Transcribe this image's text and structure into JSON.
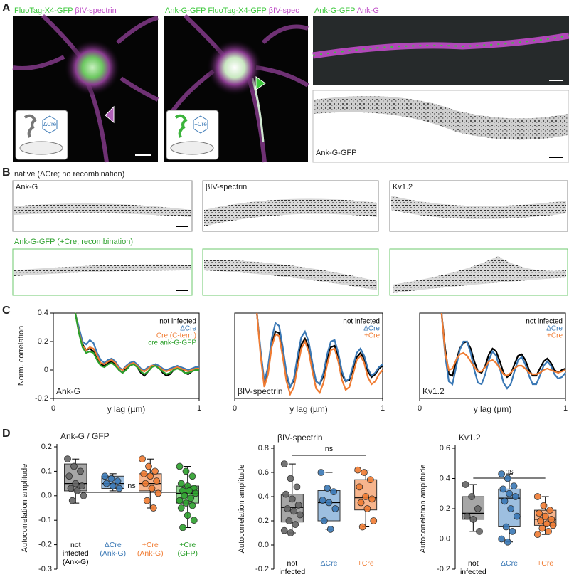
{
  "panels": {
    "A": {
      "label": "A",
      "images": [
        {
          "labels": [
            "FluoTag-X4-GFP",
            "βIV-spectrin"
          ],
          "inset": "ΔCre"
        },
        {
          "labels": [
            "Ank-G-GFP",
            "FluoTag-X4-GFP",
            "βIV-spec"
          ],
          "inset": "+Cre"
        },
        {
          "labels": [
            "Ank-G-GFP",
            "Ank-G"
          ]
        },
        {
          "labels": [
            "Ank-G-GFP"
          ]
        }
      ]
    },
    "B": {
      "label": "B",
      "row_titles": [
        "native (ΔCre; no recombination)",
        "Ank-G-GFP (+Cre; recombination)"
      ],
      "box_labels": [
        "Ank-G",
        "βIV-spectrin",
        "Kv1.2"
      ]
    },
    "C": {
      "label": "C"
    },
    "D": {
      "label": "D"
    }
  },
  "chart_data": [
    {
      "type": "line",
      "inner_label": "Ank-G",
      "y_label": "Norm. correlation",
      "x_label": "y lag (µm)",
      "xlim": [
        0,
        1
      ],
      "xticks": [
        0,
        1
      ],
      "ylim": [
        -0.2,
        0.4
      ],
      "yticks": [
        0.4,
        0.2,
        0,
        -0.2
      ],
      "x": [
        0.15,
        0.175,
        0.2,
        0.225,
        0.25,
        0.275,
        0.3,
        0.325,
        0.35,
        0.375,
        0.4,
        0.425,
        0.45,
        0.475,
        0.5,
        0.525,
        0.55,
        0.575,
        0.6,
        0.625,
        0.65,
        0.675,
        0.7,
        0.725,
        0.75,
        0.775,
        0.8,
        0.825,
        0.85,
        0.875,
        0.9,
        0.925,
        0.95,
        0.975,
        1.0
      ],
      "series": [
        {
          "name": "not infected",
          "color": "#000000",
          "values": [
            0.4,
            0.28,
            0.18,
            0.14,
            0.15,
            0.13,
            0.08,
            0.04,
            0.03,
            0.05,
            0.06,
            0.04,
            0.0,
            -0.02,
            0.01,
            0.04,
            0.05,
            0.02,
            -0.02,
            -0.04,
            -0.01,
            0.02,
            0.04,
            0.02,
            -0.02,
            -0.04,
            -0.03,
            0.0,
            0.02,
            0.01,
            -0.02,
            -0.03,
            -0.01,
            0.01,
            0.01
          ]
        },
        {
          "name": "ΔCre",
          "color": "#3a78b5",
          "values": [
            0.4,
            0.3,
            0.2,
            0.18,
            0.21,
            0.19,
            0.12,
            0.07,
            0.05,
            0.07,
            0.08,
            0.06,
            0.02,
            0.0,
            0.03,
            0.05,
            0.06,
            0.04,
            0.01,
            0.0,
            0.02,
            0.03,
            0.04,
            0.03,
            0.01,
            0.0,
            0.01,
            0.02,
            0.03,
            0.02,
            0.01,
            0.0,
            0.01,
            0.02,
            0.02
          ]
        },
        {
          "name": "Cre (C-term)",
          "color": "#f07c33",
          "values": [
            0.4,
            0.27,
            0.17,
            0.14,
            0.16,
            0.15,
            0.1,
            0.05,
            0.04,
            0.06,
            0.07,
            0.05,
            0.01,
            0.0,
            0.02,
            0.04,
            0.05,
            0.03,
            0.0,
            -0.01,
            0.01,
            0.03,
            0.03,
            0.02,
            0.0,
            -0.01,
            0.0,
            0.01,
            0.02,
            0.01,
            0.0,
            -0.01,
            0.0,
            0.01,
            0.01
          ]
        },
        {
          "name": "cre ank-G-GFP",
          "color": "#2ca02c",
          "values": [
            0.4,
            0.26,
            0.16,
            0.12,
            0.13,
            0.12,
            0.07,
            0.03,
            0.02,
            0.04,
            0.05,
            0.03,
            0.0,
            -0.02,
            0.0,
            0.03,
            0.04,
            0.02,
            -0.01,
            -0.03,
            -0.01,
            0.02,
            0.03,
            0.01,
            -0.01,
            -0.03,
            -0.02,
            0.0,
            0.01,
            0.0,
            -0.02,
            -0.02,
            -0.01,
            0.0,
            0.0
          ]
        }
      ]
    },
    {
      "type": "line",
      "inner_label": "βIV-spectrin",
      "x_label": "y lag (µm)",
      "xlim": [
        0,
        1
      ],
      "xticks": [
        0,
        1
      ],
      "ylim": [
        -0.2,
        0.4
      ],
      "x": [
        0.15,
        0.175,
        0.2,
        0.225,
        0.25,
        0.275,
        0.3,
        0.325,
        0.35,
        0.375,
        0.4,
        0.425,
        0.45,
        0.475,
        0.5,
        0.525,
        0.55,
        0.575,
        0.6,
        0.625,
        0.65,
        0.675,
        0.7,
        0.725,
        0.75,
        0.775,
        0.8,
        0.825,
        0.85,
        0.875,
        0.9,
        0.925,
        0.95,
        0.975,
        1.0
      ],
      "series": [
        {
          "name": "not infected",
          "color": "#000000",
          "values": [
            0.4,
            0.12,
            -0.09,
            0.0,
            0.18,
            0.27,
            0.26,
            0.12,
            -0.04,
            -0.12,
            -0.07,
            0.06,
            0.18,
            0.22,
            0.16,
            0.03,
            -0.08,
            -0.1,
            -0.04,
            0.08,
            0.16,
            0.17,
            0.09,
            -0.03,
            -0.08,
            -0.07,
            0.01,
            0.09,
            0.12,
            0.08,
            -0.01,
            -0.05,
            -0.03,
            0.01,
            0.03
          ]
        },
        {
          "name": "ΔCre",
          "color": "#3a78b5",
          "values": [
            0.4,
            0.14,
            -0.08,
            0.02,
            0.22,
            0.33,
            0.31,
            0.16,
            -0.02,
            -0.12,
            -0.06,
            0.1,
            0.23,
            0.27,
            0.2,
            0.05,
            -0.08,
            -0.1,
            -0.02,
            0.11,
            0.2,
            0.21,
            0.12,
            -0.01,
            -0.08,
            -0.06,
            0.03,
            0.12,
            0.15,
            0.1,
            0.01,
            -0.04,
            -0.02,
            0.02,
            0.04
          ]
        },
        {
          "name": "+Cre",
          "color": "#f07c33",
          "values": [
            0.4,
            0.1,
            -0.12,
            -0.03,
            0.16,
            0.25,
            0.24,
            0.09,
            -0.08,
            -0.17,
            -0.12,
            0.02,
            0.15,
            0.2,
            0.13,
            -0.01,
            -0.13,
            -0.16,
            -0.09,
            0.04,
            0.14,
            0.15,
            0.06,
            -0.07,
            -0.14,
            -0.12,
            -0.03,
            0.07,
            0.1,
            0.05,
            -0.05,
            -0.1,
            -0.08,
            -0.03,
            0.0
          ]
        }
      ]
    },
    {
      "type": "line",
      "inner_label": "Kv1.2",
      "x_label": "y lag (µm)",
      "xlim": [
        0,
        1
      ],
      "xticks": [
        0,
        1
      ],
      "ylim": [
        -0.2,
        0.4
      ],
      "x": [
        0.15,
        0.175,
        0.2,
        0.225,
        0.25,
        0.275,
        0.3,
        0.325,
        0.35,
        0.375,
        0.4,
        0.425,
        0.45,
        0.475,
        0.5,
        0.525,
        0.55,
        0.575,
        0.6,
        0.625,
        0.65,
        0.675,
        0.7,
        0.725,
        0.75,
        0.775,
        0.8,
        0.825,
        0.85,
        0.875,
        0.9,
        0.925,
        0.95,
        0.975,
        1.0
      ],
      "series": [
        {
          "name": "not infected",
          "color": "#000000",
          "values": [
            0.4,
            0.15,
            -0.03,
            -0.04,
            0.06,
            0.15,
            0.19,
            0.2,
            0.15,
            0.06,
            -0.01,
            -0.02,
            0.03,
            0.11,
            0.15,
            0.13,
            0.06,
            -0.02,
            -0.05,
            -0.03,
            0.04,
            0.1,
            0.11,
            0.07,
            0.0,
            -0.04,
            -0.04,
            0.01,
            0.06,
            0.08,
            0.05,
            0.0,
            -0.02,
            0.0,
            0.01
          ]
        },
        {
          "name": "ΔCre",
          "color": "#3a78b5",
          "values": [
            0.4,
            0.1,
            -0.08,
            -0.1,
            0.02,
            0.14,
            0.2,
            0.2,
            0.12,
            0.0,
            -0.09,
            -0.1,
            -0.03,
            0.07,
            0.13,
            0.1,
            0.01,
            -0.09,
            -0.13,
            -0.1,
            -0.01,
            0.07,
            0.09,
            0.04,
            -0.04,
            -0.1,
            -0.1,
            -0.04,
            0.03,
            0.06,
            0.03,
            -0.03,
            -0.06,
            -0.05,
            -0.02
          ]
        },
        {
          "name": "+Cre",
          "color": "#f07c33",
          "values": [
            0.4,
            0.12,
            0.0,
            0.01,
            0.07,
            0.11,
            0.12,
            0.1,
            0.06,
            0.02,
            -0.01,
            -0.01,
            0.02,
            0.06,
            0.07,
            0.05,
            0.01,
            -0.03,
            -0.04,
            -0.02,
            0.01,
            0.03,
            0.03,
            0.01,
            -0.02,
            -0.03,
            -0.03,
            -0.02,
            0.0,
            0.01,
            0.0,
            -0.01,
            -0.02,
            -0.01,
            0.0
          ]
        }
      ]
    },
    {
      "type": "box",
      "title": "Ank-G / GFP",
      "y_label": "Autocorrelation amplitude",
      "annotation": "ns",
      "ylim": [
        -0.3,
        0.2
      ],
      "yticks": [
        0.2,
        0.1,
        {
          "value": 0,
          "label": "0.0"
        },
        -0.1,
        -0.2,
        -0.3
      ],
      "categories": [
        [
          "not",
          "infected",
          "(Ank-G)"
        ],
        [
          "ΔCre",
          "(Ank-G)"
        ],
        [
          "+Cre",
          "(Ank-G)"
        ],
        [
          "+Cre",
          "(GFP)"
        ]
      ],
      "boxes": [
        {
          "color": "#555555",
          "fill": "#a6a6a6",
          "whisker_low": -0.03,
          "q1": 0.02,
          "median": 0.05,
          "q3": 0.13,
          "whisker_high": 0.15,
          "points": [
            0.15,
            0.12,
            0.1,
            0.08,
            0.05,
            0.04,
            0.03,
            0.02,
            0.0,
            -0.02
          ]
        },
        {
          "color": "#3a78b5",
          "fill": "#9dbfe0",
          "whisker_low": 0.02,
          "q1": 0.03,
          "median": 0.05,
          "q3": 0.08,
          "whisker_high": 0.09,
          "points": [
            0.08,
            0.07,
            0.06,
            0.05,
            0.04,
            0.03
          ]
        },
        {
          "color": "#f07c33",
          "fill": "#f7b58d",
          "whisker_low": -0.05,
          "q1": 0.02,
          "median": 0.05,
          "q3": 0.09,
          "whisker_high": 0.15,
          "points": [
            0.15,
            0.12,
            0.1,
            0.09,
            0.08,
            0.06,
            0.05,
            0.03,
            0.01,
            -0.02,
            -0.05
          ]
        },
        {
          "color": "#2ca02c",
          "fill": "#8ed58e",
          "whisker_low": -0.13,
          "q1": -0.03,
          "median": 0.01,
          "q3": 0.04,
          "whisker_high": 0.12,
          "points": [
            0.12,
            0.1,
            0.08,
            0.05,
            0.04,
            0.03,
            0.02,
            0.02,
            0.01,
            0.0,
            -0.01,
            -0.02,
            -0.03,
            -0.04,
            -0.05,
            -0.08,
            -0.1,
            -0.13
          ]
        }
      ]
    },
    {
      "type": "box",
      "title": "βIV-spectrin",
      "y_label": "Autocorrelation amplitude",
      "annotation": "ns",
      "ylim": [
        -0.2,
        0.8
      ],
      "yticks": [
        0.8,
        0.6,
        0.4,
        0.2,
        {
          "value": 0,
          "label": "0.0"
        },
        -0.2
      ],
      "categories": [
        [
          "not",
          "infected"
        ],
        [
          "ΔCre"
        ],
        [
          "+Cre"
        ]
      ],
      "boxes": [
        {
          "color": "#555555",
          "fill": "#a6a6a6",
          "whisker_low": 0.1,
          "q1": 0.19,
          "median": 0.31,
          "q3": 0.42,
          "whisker_high": 0.67,
          "points": [
            0.67,
            0.55,
            0.48,
            0.42,
            0.38,
            0.33,
            0.3,
            0.28,
            0.25,
            0.2,
            0.17,
            0.12,
            0.1
          ]
        },
        {
          "color": "#3a78b5",
          "fill": "#9dbfe0",
          "whisker_low": 0.13,
          "q1": 0.2,
          "median": 0.35,
          "q3": 0.45,
          "whisker_high": 0.6,
          "points": [
            0.6,
            0.47,
            0.44,
            0.37,
            0.35,
            0.3,
            0.2,
            0.13
          ]
        },
        {
          "color": "#f07c33",
          "fill": "#f7b58d",
          "whisker_low": 0.15,
          "q1": 0.29,
          "median": 0.39,
          "q3": 0.54,
          "whisker_high": 0.62,
          "points": [
            0.62,
            0.6,
            0.54,
            0.48,
            0.4,
            0.38,
            0.35,
            0.3,
            0.2,
            0.15
          ]
        }
      ]
    },
    {
      "type": "box",
      "title": "Kv1.2",
      "y_label": "Autocorrelation amplitude",
      "annotation": "ns",
      "ylim": [
        -0.2,
        0.6
      ],
      "yticks": [
        0.6,
        0.4,
        0.2,
        {
          "value": 0,
          "label": "0.0"
        },
        -0.2
      ],
      "categories": [
        [
          "not",
          "infected"
        ],
        [
          "ΔCre"
        ],
        [
          "+Cre"
        ]
      ],
      "boxes": [
        {
          "color": "#555555",
          "fill": "#a6a6a6",
          "whisker_low": 0.05,
          "q1": 0.13,
          "median": 0.17,
          "q3": 0.28,
          "whisker_high": 0.36,
          "points": [
            0.36,
            0.28,
            0.2,
            0.15,
            0.13,
            0.05
          ]
        },
        {
          "color": "#3a78b5",
          "fill": "#9dbfe0",
          "whisker_low": -0.02,
          "q1": 0.08,
          "median": 0.27,
          "q3": 0.33,
          "whisker_high": 0.43,
          "points": [
            0.43,
            0.4,
            0.35,
            0.33,
            0.3,
            0.28,
            0.25,
            0.2,
            0.15,
            0.08,
            0.05,
            0.0,
            -0.02
          ]
        },
        {
          "color": "#f07c33",
          "fill": "#f7b58d",
          "whisker_low": 0.03,
          "q1": 0.09,
          "median": 0.13,
          "q3": 0.19,
          "whisker_high": 0.28,
          "points": [
            0.28,
            0.22,
            0.19,
            0.17,
            0.15,
            0.13,
            0.12,
            0.1,
            0.09,
            0.07,
            0.05,
            0.03
          ]
        }
      ]
    }
  ]
}
